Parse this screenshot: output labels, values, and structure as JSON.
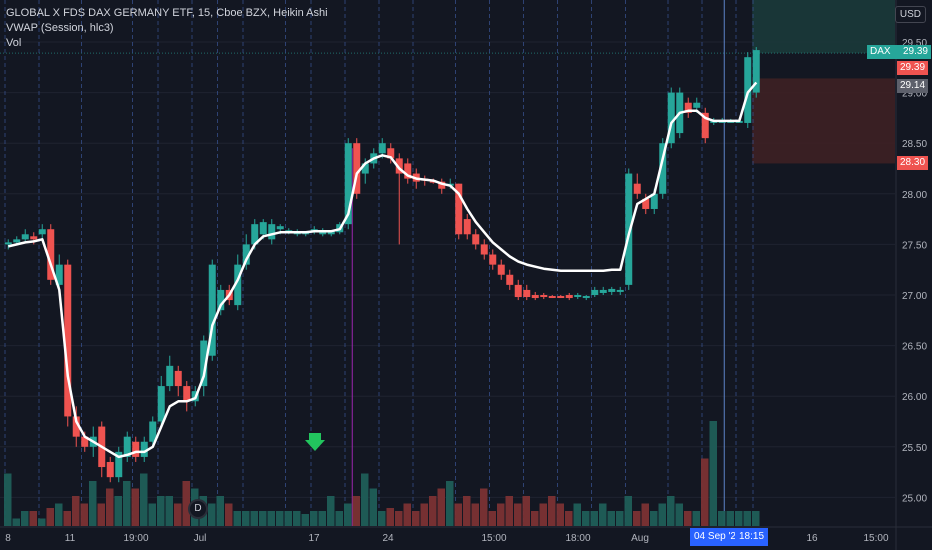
{
  "legend": {
    "title": "GLOBAL X FDS DAX GERMANY ETF, 15, Cboe BZX, Heikin Ashi",
    "vwap": "VWAP (Session, hlc3)",
    "vol": "Vol"
  },
  "currency": "USD",
  "colors": {
    "up": "#26a69a",
    "down": "#ef5350",
    "vwap": "#ffffff",
    "bg": "#131722",
    "session_line": "#3a5596",
    "tp_zone": "#1b3a3a",
    "sl_zone": "#3e2024"
  },
  "price_tags": [
    {
      "label": "DAX",
      "value": "29.39",
      "color": "#26a69a"
    },
    {
      "value": "29.39",
      "color": "#ef5350"
    },
    {
      "value": "29.14",
      "color": "#5d606b"
    },
    {
      "value": "28.30",
      "color": "#ef5350"
    }
  ],
  "crosshair_labels": {
    "date": "04 Sep '20",
    "time": "18:15"
  },
  "event_marker": "D",
  "chart_data": {
    "type": "candlestick",
    "style": "Heikin Ashi",
    "y_ticks": [
      25.0,
      25.5,
      26.0,
      26.5,
      27.0,
      27.5,
      28.0,
      28.5,
      29.0,
      29.5
    ],
    "y_tick_labels": [
      "25.00",
      "25.50",
      "26.00",
      "26.50",
      "27.00",
      "27.50",
      "28.00",
      "28.50",
      "29.00",
      "29.50"
    ],
    "ylim": [
      24.75,
      29.95
    ],
    "x_tick_labels": [
      "8",
      "11",
      "19:00",
      "Jul",
      "17",
      "24",
      "15:00",
      "18:00",
      "Aug",
      "16",
      "15:00"
    ],
    "candles": [
      [
        27.5,
        27.52,
        27.45,
        27.55
      ],
      [
        27.52,
        27.55,
        27.5,
        27.58
      ],
      [
        27.55,
        27.6,
        27.53,
        27.65
      ],
      [
        27.58,
        27.55,
        27.5,
        27.62
      ],
      [
        27.6,
        27.65,
        27.55,
        27.7
      ],
      [
        27.65,
        27.15,
        27.1,
        27.7
      ],
      [
        27.1,
        27.3,
        27.05,
        27.4
      ],
      [
        27.3,
        25.8,
        25.7,
        27.35
      ],
      [
        25.8,
        25.6,
        25.5,
        25.9
      ],
      [
        25.6,
        25.5,
        25.45,
        25.65
      ],
      [
        25.5,
        25.6,
        25.4,
        25.7
      ],
      [
        25.7,
        25.3,
        25.2,
        25.75
      ],
      [
        25.35,
        25.2,
        25.15,
        25.4
      ],
      [
        25.2,
        25.45,
        25.15,
        25.5
      ],
      [
        25.4,
        25.6,
        25.35,
        25.65
      ],
      [
        25.55,
        25.4,
        25.35,
        25.6
      ],
      [
        25.4,
        25.55,
        25.35,
        25.6
      ],
      [
        25.55,
        25.75,
        25.5,
        25.8
      ],
      [
        25.75,
        26.1,
        25.7,
        26.2
      ],
      [
        26.1,
        26.3,
        26.05,
        26.4
      ],
      [
        26.25,
        26.1,
        26.0,
        26.3
      ],
      [
        26.1,
        25.95,
        25.85,
        26.15
      ],
      [
        25.95,
        26.05,
        25.9,
        26.1
      ],
      [
        26.1,
        26.55,
        26.0,
        26.6
      ],
      [
        26.4,
        27.3,
        26.35,
        27.35
      ],
      [
        26.85,
        27.05,
        26.8,
        27.1
      ],
      [
        27.05,
        26.95,
        26.9,
        27.1
      ],
      [
        26.9,
        27.3,
        26.85,
        27.4
      ],
      [
        27.3,
        27.5,
        27.25,
        27.6
      ],
      [
        27.5,
        27.7,
        27.45,
        27.75
      ],
      [
        27.6,
        27.72,
        27.55,
        27.75
      ],
      [
        27.55,
        27.7,
        27.5,
        27.75
      ],
      [
        27.65,
        27.68,
        27.6,
        27.7
      ],
      [
        27.62,
        27.64,
        27.6,
        27.66
      ],
      [
        27.6,
        27.62,
        27.58,
        27.65
      ],
      [
        27.6,
        27.62,
        27.58,
        27.63
      ],
      [
        27.62,
        27.65,
        27.6,
        27.68
      ],
      [
        27.6,
        27.64,
        27.58,
        27.66
      ],
      [
        27.6,
        27.63,
        27.58,
        27.64
      ],
      [
        27.62,
        27.7,
        27.6,
        27.72
      ],
      [
        27.7,
        28.5,
        27.65,
        28.55
      ],
      [
        28.5,
        28.0,
        27.95,
        28.55
      ],
      [
        28.2,
        28.3,
        28.1,
        28.35
      ],
      [
        28.3,
        28.4,
        28.25,
        28.45
      ],
      [
        28.4,
        28.5,
        28.35,
        28.55
      ],
      [
        28.45,
        28.35,
        28.3,
        28.5
      ],
      [
        28.35,
        28.2,
        27.5,
        28.4
      ],
      [
        28.3,
        28.15,
        28.1,
        28.35
      ],
      [
        28.2,
        28.12,
        28.05,
        28.25
      ],
      [
        28.15,
        28.13,
        28.08,
        28.18
      ],
      [
        28.13,
        28.12,
        28.1,
        28.15
      ],
      [
        28.12,
        28.05,
        28.0,
        28.15
      ],
      [
        28.1,
        28.1,
        28.05,
        28.15
      ],
      [
        28.1,
        27.6,
        27.55,
        28.1
      ],
      [
        27.75,
        27.6,
        27.55,
        27.8
      ],
      [
        27.6,
        27.5,
        27.45,
        27.65
      ],
      [
        27.5,
        27.4,
        27.35,
        27.55
      ],
      [
        27.4,
        27.3,
        27.25,
        27.45
      ],
      [
        27.3,
        27.2,
        27.15,
        27.35
      ],
      [
        27.2,
        27.1,
        27.05,
        27.25
      ],
      [
        27.1,
        26.98,
        26.95,
        27.15
      ],
      [
        27.05,
        26.98,
        26.95,
        27.1
      ],
      [
        27.0,
        26.97,
        26.95,
        27.03
      ],
      [
        27.0,
        26.98,
        26.96,
        27.02
      ],
      [
        26.99,
        26.98,
        26.97,
        27.0
      ],
      [
        26.99,
        26.98,
        26.97,
        27.0
      ],
      [
        27.0,
        26.97,
        26.95,
        27.02
      ],
      [
        26.98,
        27.0,
        26.96,
        27.02
      ],
      [
        26.97,
        26.99,
        26.95,
        27.0
      ],
      [
        27.0,
        27.05,
        26.98,
        27.08
      ],
      [
        27.02,
        27.05,
        27.0,
        27.08
      ],
      [
        27.03,
        27.06,
        27.0,
        27.08
      ],
      [
        27.05,
        27.05,
        27.0,
        27.08
      ],
      [
        27.1,
        28.2,
        27.05,
        28.25
      ],
      [
        28.1,
        28.0,
        27.95,
        28.2
      ],
      [
        27.95,
        27.85,
        27.8,
        28.0
      ],
      [
        27.85,
        28.0,
        27.8,
        28.05
      ],
      [
        28.0,
        28.5,
        27.95,
        28.55
      ],
      [
        28.5,
        29.0,
        28.45,
        29.05
      ],
      [
        28.6,
        29.0,
        28.55,
        29.05
      ],
      [
        28.9,
        28.8,
        28.75,
        28.95
      ],
      [
        28.85,
        28.9,
        28.8,
        28.95
      ],
      [
        28.8,
        28.55,
        28.5,
        28.85
      ],
      [
        28.72,
        28.72,
        28.68,
        28.75
      ],
      [
        28.72,
        28.72,
        28.7,
        28.75
      ],
      [
        28.72,
        28.72,
        28.7,
        28.74
      ],
      [
        28.72,
        28.72,
        28.7,
        28.75
      ],
      [
        28.7,
        29.35,
        28.65,
        29.4
      ],
      [
        29.0,
        29.42,
        28.95,
        29.45
      ]
    ],
    "vwap": [
      27.48,
      27.5,
      27.52,
      27.53,
      27.55,
      27.3,
      27.05,
      26.2,
      25.75,
      25.6,
      25.55,
      25.5,
      25.45,
      25.4,
      25.42,
      25.45,
      25.45,
      25.5,
      25.7,
      25.9,
      25.95,
      25.95,
      25.98,
      26.2,
      26.7,
      26.9,
      27.0,
      27.15,
      27.35,
      27.5,
      27.58,
      27.6,
      27.62,
      27.62,
      27.62,
      27.62,
      27.63,
      27.63,
      27.63,
      27.65,
      27.8,
      28.2,
      28.3,
      28.35,
      28.38,
      28.36,
      28.25,
      28.18,
      28.15,
      28.14,
      28.13,
      28.1,
      28.08,
      28.0,
      27.85,
      27.72,
      27.62,
      27.52,
      27.45,
      27.38,
      27.33,
      27.3,
      27.28,
      27.26,
      27.25,
      27.24,
      27.24,
      27.24,
      27.24,
      27.24,
      27.24,
      27.25,
      27.25,
      27.6,
      27.9,
      27.95,
      28.0,
      28.35,
      28.7,
      28.8,
      28.82,
      28.82,
      28.75,
      28.72,
      28.72,
      28.72,
      28.72,
      29.0,
      29.1
    ],
    "volumes": [
      0.35,
      0.05,
      0.1,
      0.1,
      0.05,
      0.12,
      0.15,
      0.1,
      0.2,
      0.15,
      0.3,
      0.15,
      0.25,
      0.2,
      0.3,
      0.25,
      0.35,
      0.15,
      0.2,
      0.2,
      0.15,
      0.3,
      0.25,
      0.2,
      0.15,
      0.2,
      0.15,
      0.1,
      0.1,
      0.1,
      0.1,
      0.1,
      0.1,
      0.1,
      0.1,
      0.08,
      0.1,
      0.1,
      0.2,
      0.1,
      0.15,
      0.2,
      0.35,
      0.25,
      0.1,
      0.12,
      0.1,
      0.15,
      0.1,
      0.15,
      0.2,
      0.25,
      0.3,
      0.15,
      0.2,
      0.15,
      0.25,
      0.1,
      0.15,
      0.2,
      0.15,
      0.2,
      0.1,
      0.15,
      0.2,
      0.15,
      0.1,
      0.15,
      0.1,
      0.1,
      0.15,
      0.1,
      0.1,
      0.2,
      0.1,
      0.15,
      0.1,
      0.15,
      0.2,
      0.15,
      0.1,
      0.1,
      0.45,
      0.7,
      0.1,
      0.1,
      0.1,
      0.1,
      0.1
    ],
    "grid": true,
    "legend_placement": "top-left"
  }
}
